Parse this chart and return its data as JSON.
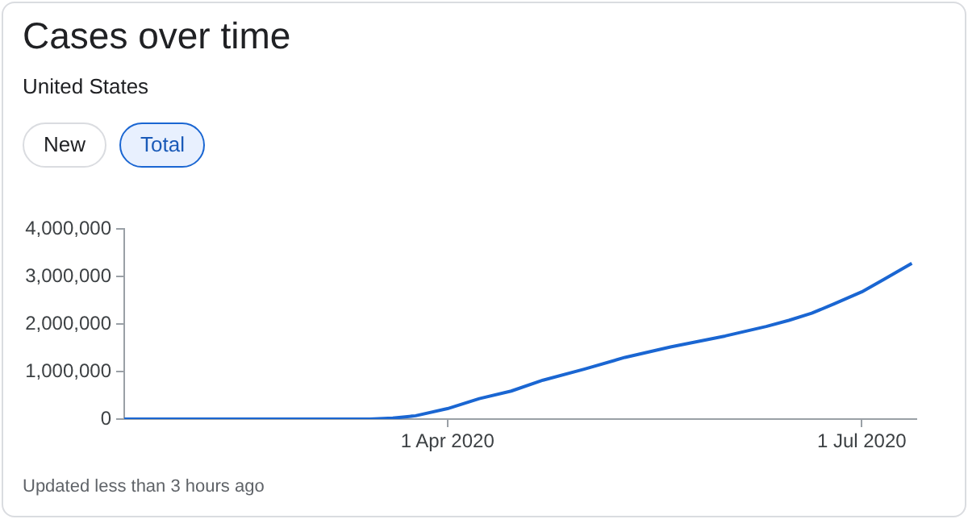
{
  "chart_data": {
    "type": "line",
    "title": "Cases over time",
    "subtitle": "United States",
    "annotations": [
      "New",
      "Total",
      "Updated less than 3 hours ago"
    ],
    "x": [
      "2020-01-21",
      "2020-02-15",
      "2020-03-01",
      "2020-03-10",
      "2020-03-15",
      "2020-03-20",
      "2020-03-25",
      "2020-04-01",
      "2020-04-08",
      "2020-04-15",
      "2020-04-22",
      "2020-05-01",
      "2020-05-10",
      "2020-05-20",
      "2020-06-01",
      "2020-06-10",
      "2020-06-15",
      "2020-06-20",
      "2020-06-25",
      "2020-07-01",
      "2020-07-06",
      "2020-07-12"
    ],
    "series": [
      {
        "color": "#1a66d2",
        "values": [
          0,
          0,
          0,
          0,
          0,
          20000,
          70000,
          220000,
          430000,
          590000,
          820000,
          1050000,
          1300000,
          1520000,
          1750000,
          1950000,
          2080000,
          2230000,
          2430000,
          2680000,
          2950000,
          3280000
        ]
      }
    ],
    "xlim": [
      "2020-01-21",
      "2020-07-13"
    ],
    "xticks": [
      {
        "value": "2020-04-01",
        "label": "1 Apr 2020"
      },
      {
        "value": "2020-07-01",
        "label": "1 Jul 2020"
      }
    ],
    "ylim": [
      0,
      4000000
    ],
    "yticks": [
      {
        "value": 0,
        "label": "0"
      },
      {
        "value": 1000000,
        "label": "1,000,000"
      },
      {
        "value": 2000000,
        "label": "2,000,000"
      },
      {
        "value": 3000000,
        "label": "3,000,000"
      },
      {
        "value": 4000000,
        "label": "4,000,000"
      }
    ],
    "grid": false,
    "legend": false,
    "marker": "none",
    "line_style": "solid"
  }
}
